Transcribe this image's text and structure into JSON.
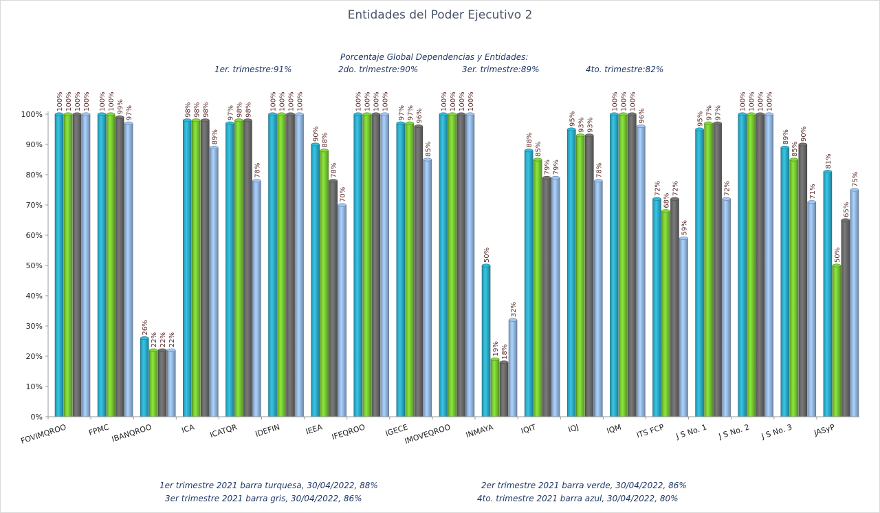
{
  "chart_data": {
    "type": "bar",
    "title": "Entidades del Poder Ejecutivo 2",
    "global_note": {
      "heading": "Porcentaje Global  Dependencias y Entidades:",
      "q1": "1er. trimestre:91%",
      "q2": "2do. trimestre:90%",
      "q3": "3er. trimestre:89%",
      "q4": "4to. trimestre:82%"
    },
    "footer": {
      "l1": "1er trimestre  2021 barra turquesa,  30/04/2022, 88%",
      "r1": "2er trimestre  2021 barra verde,  30/04/2022, 86%",
      "l2": "3er trimestre 2021 barra gris, 30/04/2022, 86%",
      "r2": "4to. trimestre 2021 barra azul, 30/04/2022, 80%"
    },
    "ylim": [
      0,
      100
    ],
    "yticks": [
      0,
      10,
      20,
      30,
      40,
      50,
      60,
      70,
      80,
      90,
      100
    ],
    "ytick_suffix": "%",
    "categories": [
      "FOVIMQROO",
      "FPMC",
      "IBANQROO",
      "ICA",
      "ICATQR",
      "IDEFIN",
      "IEEA",
      "IFEQROO",
      "IGECE",
      "IMOVEQROO",
      "INMAYA",
      "IQIT",
      "IQJ",
      "IQM",
      "ITS FCP",
      "J S No. 1",
      "J S No. 2",
      "J S No. 3",
      "JASyP"
    ],
    "series": [
      {
        "values": [
          100,
          100,
          26,
          98,
          97,
          100,
          90,
          100,
          97,
          100,
          50,
          88,
          95,
          100,
          72,
          95,
          100,
          89,
          81
        ],
        "color": "#2fb2cf"
      },
      {
        "values": [
          100,
          100,
          22,
          98,
          98,
          100,
          88,
          100,
          97,
          100,
          19,
          85,
          93,
          100,
          68,
          97,
          100,
          85,
          50
        ],
        "color": "#7ccf35"
      },
      {
        "values": [
          100,
          99,
          22,
          98,
          98,
          100,
          78,
          100,
          96,
          100,
          18,
          79,
          93,
          100,
          72,
          97,
          100,
          90,
          65
        ],
        "color": "#6e6e6e"
      },
      {
        "values": [
          100,
          97,
          22,
          89,
          78,
          100,
          70,
          100,
          85,
          100,
          32,
          79,
          78,
          96,
          59,
          72,
          100,
          71,
          75
        ],
        "color": "#99bde9"
      }
    ],
    "legend": "none",
    "grid": false
  }
}
